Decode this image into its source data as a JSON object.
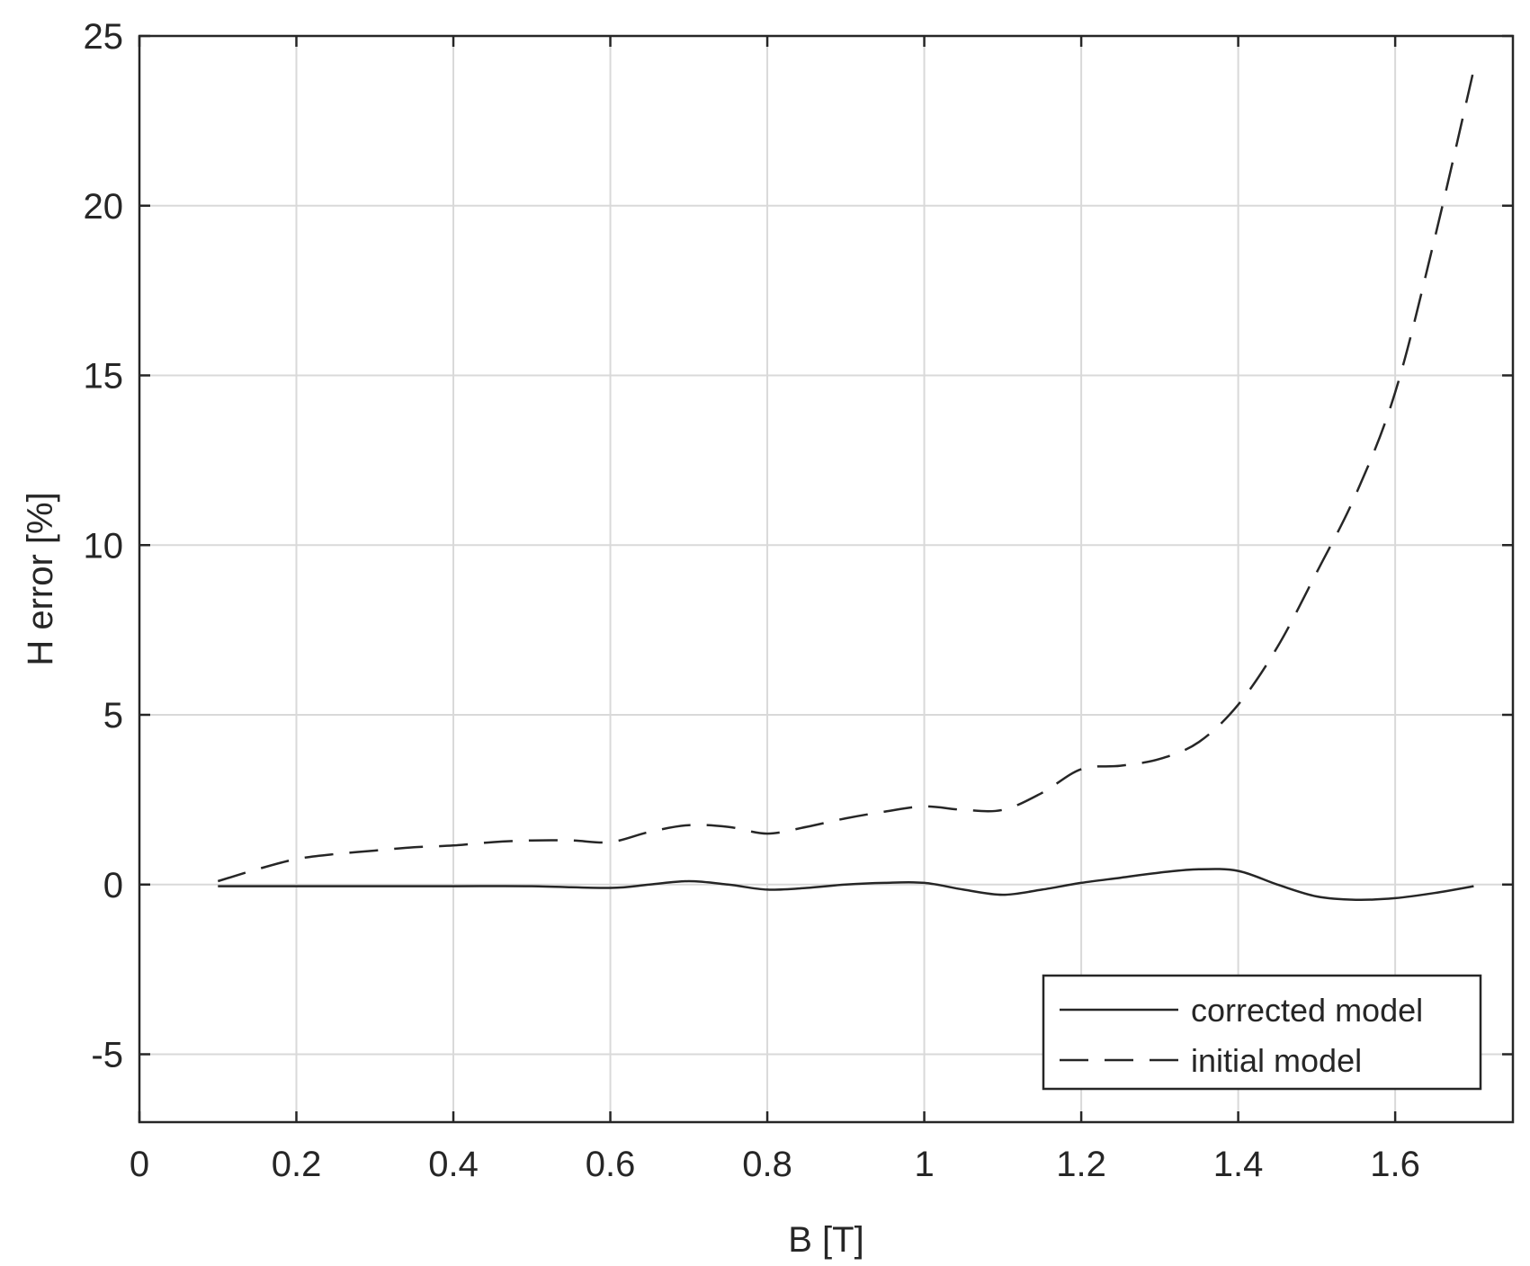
{
  "chart_data": {
    "type": "line",
    "title": "",
    "xlabel": "B [T]",
    "ylabel": "H error [%]",
    "xlim": [
      0,
      1.75
    ],
    "ylim": [
      -7,
      25
    ],
    "xticks": [
      0,
      0.2,
      0.4,
      0.6,
      0.8,
      1,
      1.2,
      1.4,
      1.6
    ],
    "xtick_labels": [
      "0",
      "0.2",
      "0.4",
      "0.6",
      "0.8",
      "1",
      "1.2",
      "1.4",
      "1.6"
    ],
    "yticks": [
      -5,
      0,
      5,
      10,
      15,
      20,
      25
    ],
    "ytick_labels": [
      "-5",
      "0",
      "5",
      "10",
      "15",
      "20",
      "25"
    ],
    "grid": true,
    "legend_position": "bottom-right",
    "series": [
      {
        "name": "corrected model",
        "line_style": "solid",
        "color": "#262626",
        "x": [
          0.1,
          0.2,
          0.3,
          0.4,
          0.5,
          0.6,
          0.65,
          0.7,
          0.75,
          0.8,
          0.85,
          0.9,
          0.95,
          1.0,
          1.05,
          1.1,
          1.15,
          1.2,
          1.25,
          1.3,
          1.35,
          1.4,
          1.45,
          1.5,
          1.55,
          1.6,
          1.65,
          1.7
        ],
        "y": [
          -0.05,
          -0.05,
          -0.05,
          -0.05,
          -0.05,
          -0.1,
          0.0,
          0.1,
          0.0,
          -0.15,
          -0.1,
          0.0,
          0.05,
          0.05,
          -0.15,
          -0.3,
          -0.15,
          0.05,
          0.2,
          0.35,
          0.45,
          0.4,
          0.0,
          -0.35,
          -0.45,
          -0.4,
          -0.25,
          -0.05
        ]
      },
      {
        "name": "initial model",
        "line_style": "dashed",
        "color": "#262626",
        "x": [
          0.1,
          0.15,
          0.2,
          0.25,
          0.3,
          0.35,
          0.4,
          0.45,
          0.5,
          0.55,
          0.6,
          0.65,
          0.7,
          0.75,
          0.8,
          0.85,
          0.9,
          0.95,
          1.0,
          1.05,
          1.1,
          1.15,
          1.2,
          1.25,
          1.3,
          1.35,
          1.4,
          1.45,
          1.5,
          1.55,
          1.6,
          1.65,
          1.7
        ],
        "y": [
          0.1,
          0.45,
          0.75,
          0.9,
          1.0,
          1.1,
          1.15,
          1.25,
          1.3,
          1.3,
          1.25,
          1.55,
          1.75,
          1.7,
          1.5,
          1.7,
          1.95,
          2.15,
          2.3,
          2.2,
          2.2,
          2.7,
          3.4,
          3.5,
          3.7,
          4.2,
          5.3,
          7.0,
          9.2,
          11.5,
          14.5,
          19.0,
          24.0
        ]
      }
    ]
  }
}
